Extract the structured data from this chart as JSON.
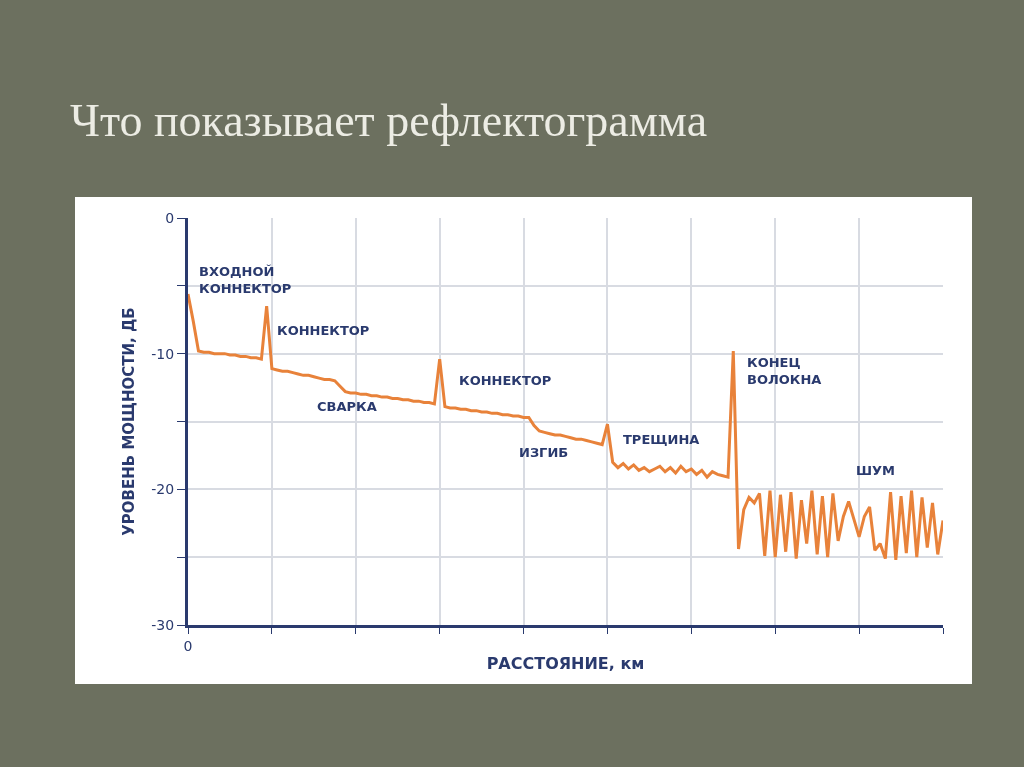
{
  "chart_data": {
    "type": "line",
    "title": "Что показывает рефлектограмма",
    "xlabel": "РАССТОЯНИЕ, км",
    "ylabel": "УРОВЕНЬ МОЩНОСТИ, ДБ",
    "categories": [
      "0",
      null,
      null,
      null,
      null,
      null,
      null,
      null,
      null,
      null,
      null,
      null,
      null,
      null,
      null,
      null,
      null,
      null,
      null,
      null,
      null,
      null,
      null,
      null,
      null,
      null,
      null,
      null,
      null,
      null,
      null,
      null,
      null,
      null,
      null,
      null,
      null,
      null,
      null,
      null,
      null,
      null,
      null,
      null,
      null,
      null,
      null,
      null,
      null,
      null,
      null,
      null,
      null,
      null,
      null,
      null,
      null,
      null,
      null,
      null,
      null,
      null,
      null,
      null,
      null,
      null,
      null,
      null,
      null,
      null,
      null,
      null,
      null,
      null,
      null,
      null,
      null,
      null,
      null,
      null,
      null,
      null,
      null,
      null,
      null,
      null,
      null,
      null,
      null,
      null,
      null,
      null,
      null,
      null,
      null,
      null,
      null,
      null,
      null,
      null,
      null,
      null,
      null,
      null,
      null,
      null,
      null,
      null,
      null,
      null,
      null,
      null,
      null,
      null,
      null,
      null,
      null,
      null,
      null,
      null,
      null,
      null,
      null,
      null,
      null,
      null,
      null,
      null,
      null,
      null,
      null,
      null,
      null,
      null,
      null,
      null,
      null,
      null,
      null,
      null,
      null,
      null,
      null,
      null,
      null
    ],
    "series": [
      {
        "color": "#e8823a",
        "values": [
          -5.6,
          -7.6,
          -9.8,
          -9.9,
          -9.9,
          -10.0,
          -10.0,
          -10.0,
          -10.1,
          -10.1,
          -10.2,
          -10.2,
          -10.3,
          -10.3,
          -10.4,
          -6.5,
          -11.1,
          -11.2,
          -11.3,
          -11.3,
          -11.4,
          -11.5,
          -11.6,
          -11.6,
          -11.7,
          -11.8,
          -11.9,
          -11.9,
          -12.0,
          -12.4,
          -12.8,
          -12.9,
          -12.9,
          -13.0,
          -13.0,
          -13.1,
          -13.1,
          -13.2,
          -13.2,
          -13.3,
          -13.3,
          -13.4,
          -13.4,
          -13.5,
          -13.5,
          -13.6,
          -13.6,
          -13.7,
          -10.4,
          -13.9,
          -14.0,
          -14.0,
          -14.1,
          -14.1,
          -14.2,
          -14.2,
          -14.3,
          -14.3,
          -14.4,
          -14.4,
          -14.5,
          -14.5,
          -14.6,
          -14.6,
          -14.7,
          -14.7,
          -15.3,
          -15.7,
          -15.8,
          -15.9,
          -16.0,
          -16.0,
          -16.1,
          -16.2,
          -16.3,
          -16.3,
          -16.4,
          -16.5,
          -16.6,
          -16.7,
          -15.2,
          -18.0,
          -18.4,
          -18.1,
          -18.5,
          -18.2,
          -18.6,
          -18.4,
          -18.7,
          -18.5,
          -18.3,
          -18.7,
          -18.4,
          -18.8,
          -18.3,
          -18.7,
          -18.5,
          -18.9,
          -18.6,
          -19.1,
          -18.7,
          -18.9,
          -19.0,
          -19.1,
          -9.8,
          -24.4,
          -21.5,
          -20.6,
          -21.0,
          -20.3,
          -24.9,
          -20.1,
          -25.0,
          -20.4,
          -24.6,
          -20.2,
          -25.1,
          -20.8,
          -24.0,
          -20.1,
          -24.8,
          -20.5,
          -25.0,
          -20.3,
          -23.8,
          -22.0,
          -20.9,
          -22.2,
          -23.5,
          -22.0,
          -21.3,
          -24.5,
          -24.0,
          -25.1,
          -20.2,
          -25.2,
          -20.5,
          -24.7,
          -20.1,
          -25.0,
          -20.6,
          -24.3,
          -21.0,
          -24.8,
          -22.3
        ]
      }
    ],
    "ylim": [
      -30,
      0
    ],
    "yticks": [
      0,
      {
        "value": -5,
        "label": null
      },
      -10,
      {
        "value": -15,
        "label": null
      },
      -20,
      {
        "value": -25,
        "label": null
      },
      -30
    ],
    "grid": true,
    "line_style": "solid",
    "marker": "none",
    "annotations": [
      "ВХОДНОЙ\nКОННЕКТОР",
      "КОННЕКТОР",
      "СВАРКА",
      "КОННЕКТОР",
      "ИЗГИБ",
      "ТРЕЩИНА",
      "КОНЕЦ\nВОЛОКНА",
      "ШУМ"
    ]
  }
}
